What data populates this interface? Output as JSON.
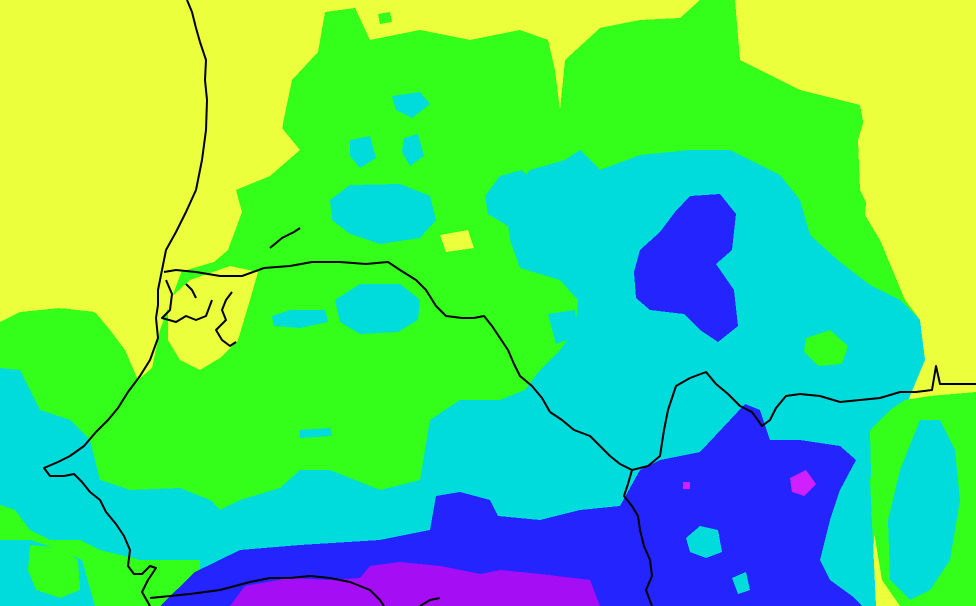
{
  "map": {
    "legend_colors": {
      "yellow": "#ecff3c",
      "green": "#33ff1a",
      "cyan": "#00dcdc",
      "blue": "#2424ff",
      "purple": "#a50ef5",
      "magenta": "#d020ff",
      "pale": "#ffffb0",
      "boundary": "#000000"
    },
    "layers": [
      "precipitation-field",
      "coastline",
      "country-borders"
    ]
  }
}
